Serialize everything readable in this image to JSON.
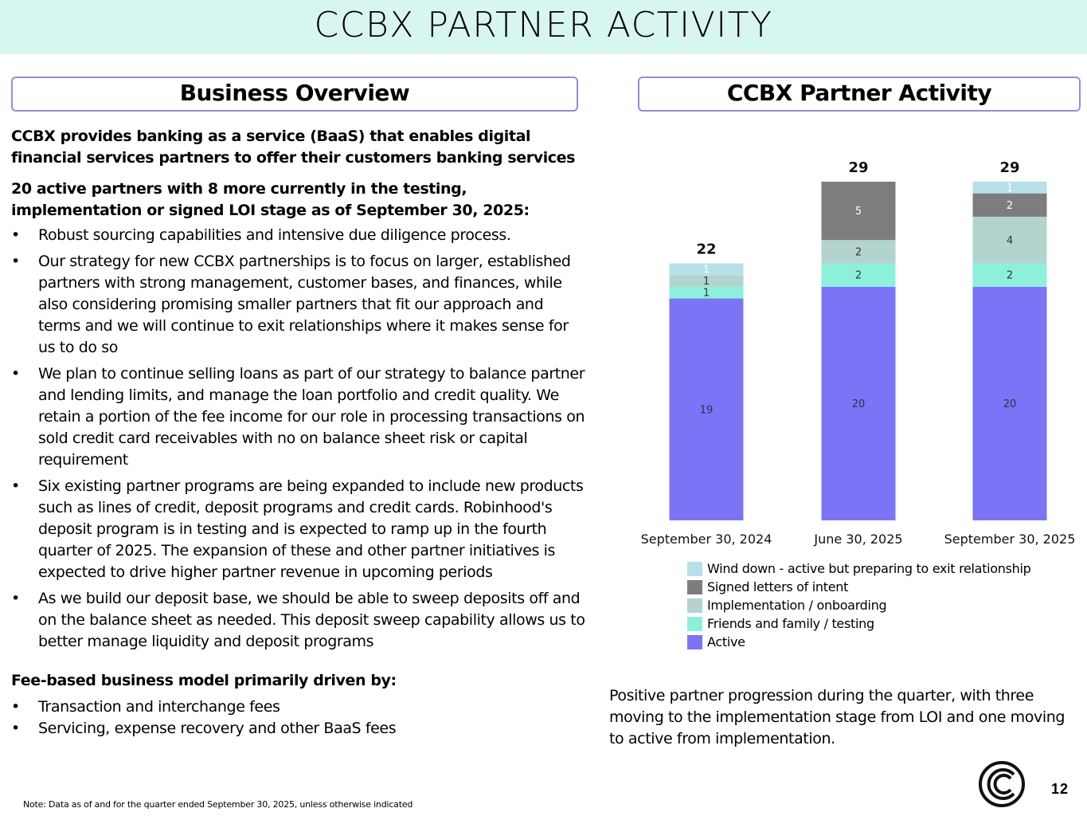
{
  "page_title": "CCBX PARTNER ACTIVITY",
  "left_section": {
    "header": "Business Overview",
    "intro": "CCBX provides banking as a service (BaaS) that enables digital financial services partners to offer their customers banking services",
    "partners_lead": "20 active partners with 8 more currently in the testing, implementation or signed LOI stage as of September 30, 2025:",
    "bullet_glyph": "•",
    "bullets": [
      "Robust sourcing capabilities and intensive due diligence process.",
      "Our strategy for new CCBX partnerships is to focus on larger, established partners with strong management, customer bases, and finances, while also considering promising smaller partners that fit our approach and terms and we will continue to exit relationships where it makes sense for us to do so",
      "We plan to continue selling loans as part of our strategy to balance partner and lending limits, and manage the loan portfolio and credit quality. We retain a portion of the fee income for our role in processing transactions on sold credit card receivables with no on balance sheet risk or capital requirement",
      "Six existing partner programs are being expanded to include new products such as lines of credit, deposit programs and credit cards.  Robinhood's deposit program is in testing and is expected to ramp up in the fourth quarter of 2025. The expansion of these and other partner initiatives is expected to drive higher partner revenue in upcoming periods",
      "As we build our deposit base, we should be able to sweep deposits off and on the balance sheet as needed.  This deposit sweep capability allows us to better manage liquidity and deposit programs"
    ],
    "fee_lead": "Fee-based business model primarily driven by:",
    "fee_bullets": [
      "Transaction and interchange fees",
      "Servicing, expense recovery and other BaaS fees"
    ]
  },
  "right_section": {
    "header": "CCBX Partner Activity",
    "summary": "Positive partner progression during the quarter, with three moving to the implementation stage from LOI and one moving to active from implementation."
  },
  "chart_data": {
    "type": "bar",
    "stacked": true,
    "categories": [
      "September 30, 2024",
      "June 30, 2025",
      "September 30, 2025"
    ],
    "totals": [
      22,
      29,
      29
    ],
    "series": [
      {
        "name": "Active",
        "values": [
          19,
          20,
          20
        ],
        "color": "#7b74f7",
        "label_color": "#333333"
      },
      {
        "name": "Friends and family / testing",
        "values": [
          1,
          2,
          2
        ],
        "color": "#8cf0da",
        "label_color": "#333333"
      },
      {
        "name": "Implementation / onboarding",
        "values": [
          1,
          2,
          4
        ],
        "color": "#b3d4ce",
        "label_color": "#333333"
      },
      {
        "name": "Signed letters of intent",
        "values": [
          0,
          5,
          2
        ],
        "color": "#7d7d7d",
        "label_color": "#ffffff"
      },
      {
        "name": "Wind down - active but preparing to exit relationship",
        "values": [
          1,
          0,
          1
        ],
        "color": "#b5e1e8",
        "label_color": "#ffffff"
      }
    ],
    "legend_order": [
      4,
      3,
      2,
      1,
      0
    ],
    "ylim": [
      0,
      29
    ],
    "grid": false
  },
  "footnote": "Note:  Data as of and for the quarter ended September 30, 2025, unless otherwise indicated",
  "page_number": "12",
  "logo_icon": "ccb-logo-icon"
}
